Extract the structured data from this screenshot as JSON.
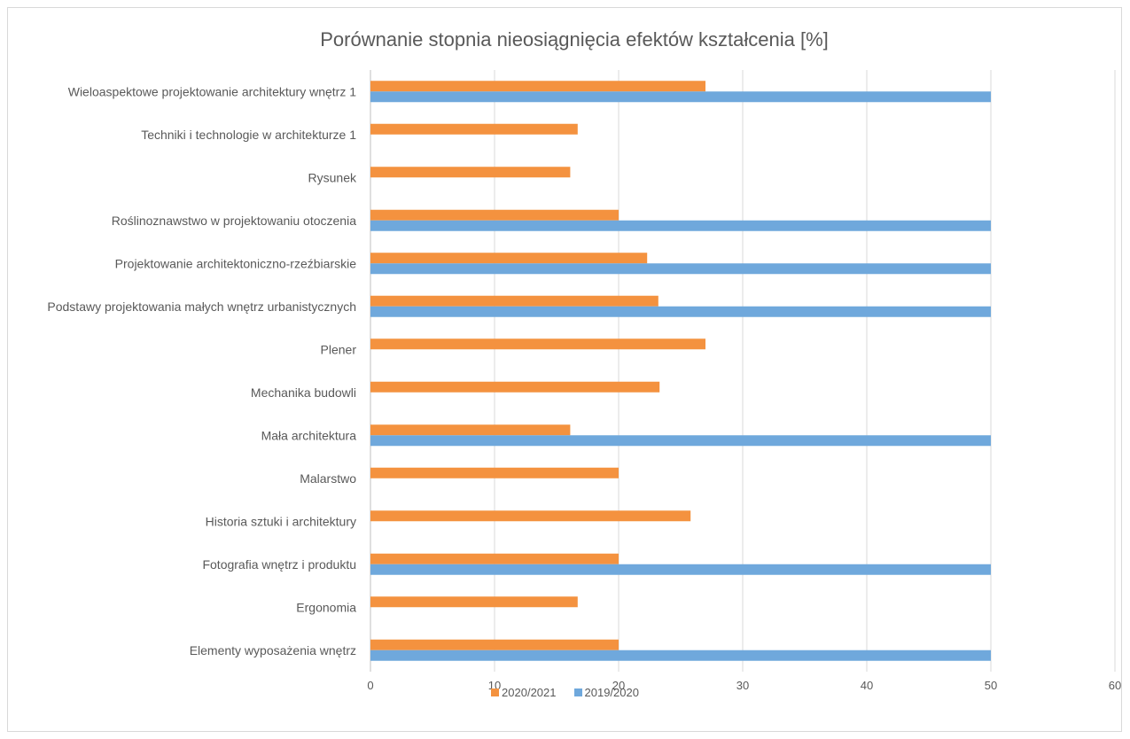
{
  "chart_data": {
    "type": "bar",
    "orientation": "horizontal",
    "title": "Porównanie stopnia nieosiągnięcia efektów kształcenia [%]",
    "xlabel": "",
    "ylabel": "",
    "xlim": [
      0,
      60
    ],
    "ticks": [
      "0",
      "10",
      "20",
      "30",
      "40",
      "50",
      "60"
    ],
    "grid": true,
    "legend_position": "bottom",
    "categories": [
      "Wieloaspektowe projektowanie architektury wnętrz 1",
      "Techniki i technologie w architekturze 1",
      "Rysunek",
      "Roślinoznawstwo w projektowaniu otoczenia",
      "Projektowanie architektoniczno-rzeźbiarskie",
      "Podstawy projektowania małych wnętrz urbanistycznych",
      "Plener",
      "Mechanika budowli",
      "Mała architektura",
      "Malarstwo",
      "Historia sztuki i architektury",
      "Fotografia wnętrz i produktu",
      "Ergonomia",
      "Elementy wyposażenia wnętrz"
    ],
    "series": [
      {
        "name": "2020/2021",
        "color": "#f4923f",
        "values": [
          27,
          16.7,
          16.1,
          20,
          22.3,
          23.2,
          27,
          23.3,
          16.1,
          20,
          25.8,
          20,
          16.7,
          20
        ]
      },
      {
        "name": "2019/2020",
        "color": "#6fa8dc",
        "values": [
          50,
          0,
          0,
          50,
          50,
          50,
          0,
          0,
          50,
          0,
          0,
          50,
          0,
          50
        ]
      }
    ]
  }
}
